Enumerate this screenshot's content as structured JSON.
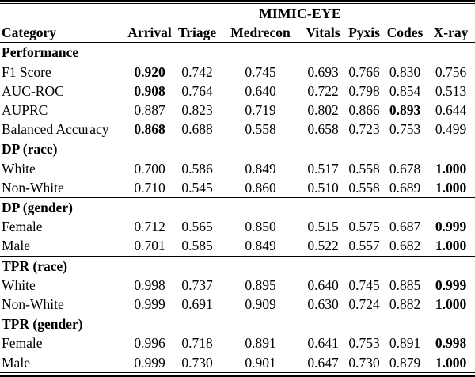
{
  "table": {
    "group_header": "MIMIC-EYE",
    "columns": [
      "Category",
      "Arrival",
      "Triage",
      "Medrecon",
      "Vitals",
      "Pyxis",
      "Codes",
      "X-ray"
    ],
    "sections": [
      {
        "title": "Performance",
        "rows": [
          {
            "label": "F1 Score",
            "values": [
              "0.920",
              "0.742",
              "0.745",
              "0.693",
              "0.766",
              "0.830",
              "0.756"
            ],
            "bold_indices": [
              0
            ]
          },
          {
            "label": "AUC-ROC",
            "values": [
              "0.908",
              "0.764",
              "0.640",
              "0.722",
              "0.798",
              "0.854",
              "0.513"
            ],
            "bold_indices": [
              0
            ]
          },
          {
            "label": "AUPRC",
            "values": [
              "0.887",
              "0.823",
              "0.719",
              "0.802",
              "0.866",
              "0.893",
              "0.644"
            ],
            "bold_indices": [
              5
            ]
          },
          {
            "label": "Balanced Accuracy",
            "values": [
              "0.868",
              "0.688",
              "0.558",
              "0.658",
              "0.723",
              "0.753",
              "0.499"
            ],
            "bold_indices": [
              0
            ]
          }
        ]
      },
      {
        "title": "DP (race)",
        "rows": [
          {
            "label": "White",
            "values": [
              "0.700",
              "0.586",
              "0.849",
              "0.517",
              "0.558",
              "0.678",
              "1.000"
            ],
            "bold_indices": [
              6
            ]
          },
          {
            "label": "Non-White",
            "values": [
              "0.710",
              "0.545",
              "0.860",
              "0.510",
              "0.558",
              "0.689",
              "1.000"
            ],
            "bold_indices": [
              6
            ]
          }
        ]
      },
      {
        "title": "DP (gender)",
        "rows": [
          {
            "label": "Female",
            "values": [
              "0.712",
              "0.565",
              "0.850",
              "0.515",
              "0.575",
              "0.687",
              "0.999"
            ],
            "bold_indices": [
              6
            ]
          },
          {
            "label": "Male",
            "values": [
              "0.701",
              "0.585",
              "0.849",
              "0.522",
              "0.557",
              "0.682",
              "1.000"
            ],
            "bold_indices": [
              6
            ]
          }
        ]
      },
      {
        "title": "TPR (race)",
        "rows": [
          {
            "label": "White",
            "values": [
              "0.998",
              "0.737",
              "0.895",
              "0.640",
              "0.745",
              "0.885",
              "0.999"
            ],
            "bold_indices": [
              6
            ]
          },
          {
            "label": "Non-White",
            "values": [
              "0.999",
              "0.691",
              "0.909",
              "0.630",
              "0.724",
              "0.882",
              "1.000"
            ],
            "bold_indices": [
              6
            ]
          }
        ]
      },
      {
        "title": "TPR (gender)",
        "rows": [
          {
            "label": "Female",
            "values": [
              "0.996",
              "0.718",
              "0.891",
              "0.641",
              "0.753",
              "0.891",
              "0.998"
            ],
            "bold_indices": [
              6
            ]
          },
          {
            "label": "Male",
            "values": [
              "0.999",
              "0.730",
              "0.901",
              "0.647",
              "0.730",
              "0.879",
              "1.000"
            ],
            "bold_indices": [
              6
            ]
          }
        ]
      }
    ],
    "text_color": "#000000",
    "background_color": "#ffffff"
  }
}
